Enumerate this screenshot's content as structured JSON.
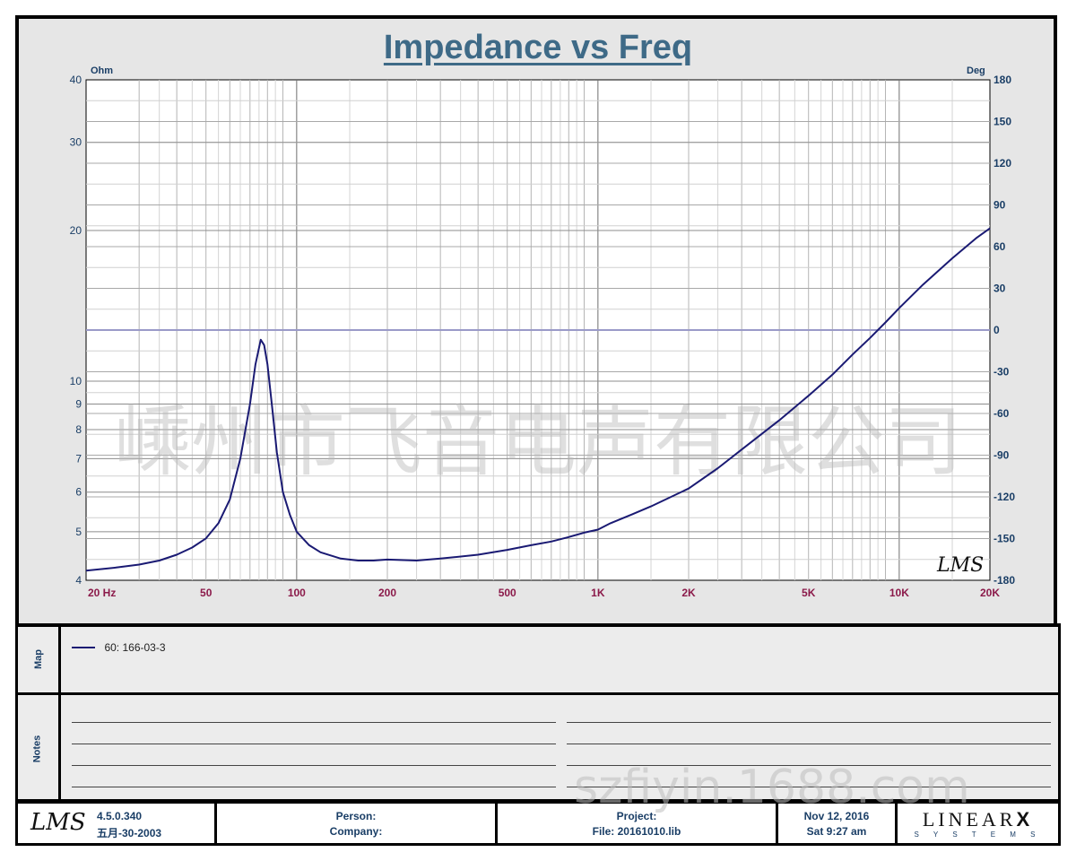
{
  "chart_data": {
    "type": "line",
    "title": "Impedance vs Freq",
    "left_axis_unit": "Ohm",
    "right_axis_unit": "Deg",
    "x_scale": "log",
    "y_scale": "log",
    "xlim": [
      20,
      20000
    ],
    "ylim": [
      4,
      40
    ],
    "y2lim": [
      -180,
      180
    ],
    "x_ticks": [
      "20  Hz",
      "50",
      "100",
      "200",
      "500",
      "1K",
      "2K",
      "5K",
      "10K",
      "20K"
    ],
    "x_tick_values": [
      20,
      50,
      100,
      200,
      500,
      1000,
      2000,
      5000,
      10000,
      20000
    ],
    "y_ticks": [
      "4",
      "5",
      "6",
      "7",
      "8",
      "9",
      "10",
      "20",
      "30",
      "40"
    ],
    "y_tick_values": [
      4,
      5,
      6,
      7,
      8,
      9,
      10,
      20,
      30,
      40
    ],
    "y2_ticks": [
      "180",
      "150",
      "120",
      "90",
      "60",
      "30",
      "0",
      "-30",
      "-60",
      "-90",
      "-120",
      "-150",
      "-180"
    ],
    "y2_tick_values": [
      180,
      150,
      120,
      90,
      60,
      30,
      0,
      -30,
      -60,
      -90,
      -120,
      -150,
      -180
    ],
    "grid": true,
    "series": [
      {
        "name": "60: 166-03-3",
        "color": "#1a1a73",
        "x": [
          20,
          25,
          30,
          35,
          40,
          45,
          50,
          55,
          60,
          65,
          70,
          73,
          76,
          78,
          80,
          83,
          86,
          90,
          95,
          100,
          110,
          120,
          140,
          160,
          180,
          200,
          250,
          300,
          400,
          500,
          600,
          700,
          800,
          900,
          1000,
          1100,
          1300,
          1500,
          2000,
          2500,
          3000,
          4000,
          5000,
          6000,
          7000,
          8000,
          9000,
          10000,
          12000,
          15000,
          18000,
          20000
        ],
        "values": [
          4.18,
          4.24,
          4.3,
          4.38,
          4.5,
          4.65,
          4.85,
          5.2,
          5.8,
          7.0,
          9.0,
          10.8,
          12.1,
          11.8,
          10.8,
          8.8,
          7.2,
          6.0,
          5.4,
          5.0,
          4.7,
          4.55,
          4.42,
          4.38,
          4.38,
          4.4,
          4.38,
          4.42,
          4.5,
          4.6,
          4.7,
          4.78,
          4.88,
          4.98,
          5.05,
          5.2,
          5.42,
          5.62,
          6.1,
          6.7,
          7.3,
          8.35,
          9.35,
          10.3,
          11.3,
          12.2,
          13.1,
          14.0,
          15.6,
          17.6,
          19.3,
          20.2
        ]
      }
    ],
    "series_label": "60: 166-03-3",
    "logo_text": "LMS",
    "watermark_text": "嵊州市飞音电声有限公司"
  },
  "panels": {
    "map_label": "Map",
    "notes_label": "Notes"
  },
  "footer": {
    "logo": "LMS",
    "version": "4.5.0.340",
    "build_date": "五月-30-2003",
    "person_label": "Person:",
    "company_label": "Company:",
    "project_label": "Project:",
    "file_label": "File: 20161010.lib",
    "date": "Nov 12, 2016",
    "datetime": "Sat  9:27 am",
    "brand_main": "LINEAR",
    "brand_x": "X",
    "brand_sub": "S Y S T E M S"
  },
  "watermark_bottom": "szfiyin.1688.com"
}
